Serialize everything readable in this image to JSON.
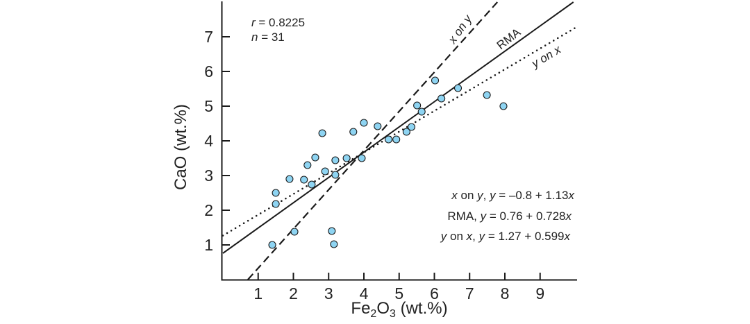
{
  "chart_data": {
    "type": "scatter",
    "title": "",
    "xlabel": "Fe2O3 (wt.%)",
    "xlabel_parts": {
      "base": "Fe",
      "sub1": "2",
      "mid": "O",
      "sub2": "3",
      "tail": " (wt.%)"
    },
    "ylabel": "CaO (wt.%)",
    "xlim": [
      0,
      10
    ],
    "ylim": [
      0,
      8
    ],
    "xticks": [
      1,
      2,
      3,
      4,
      5,
      6,
      7,
      8,
      9
    ],
    "xtick_labels": [
      "1",
      "2",
      "3",
      "4",
      "5",
      "6",
      "7",
      "8",
      "9"
    ],
    "yticks": [
      1,
      2,
      3,
      4,
      5,
      6,
      7
    ],
    "ytick_labels": [
      "1",
      "2",
      "3",
      "4",
      "5",
      "6",
      "7"
    ],
    "grid": false,
    "point_color": "#8ed4f2",
    "point_edge": "#1a1a1a",
    "points": [
      {
        "x": 1.4,
        "y": 1.0
      },
      {
        "x": 1.5,
        "y": 2.18
      },
      {
        "x": 1.5,
        "y": 2.5
      },
      {
        "x": 1.89,
        "y": 2.9
      },
      {
        "x": 2.03,
        "y": 1.38
      },
      {
        "x": 2.3,
        "y": 2.88
      },
      {
        "x": 2.4,
        "y": 3.3
      },
      {
        "x": 2.52,
        "y": 2.74
      },
      {
        "x": 2.62,
        "y": 3.52
      },
      {
        "x": 2.82,
        "y": 4.22
      },
      {
        "x": 2.9,
        "y": 3.12
      },
      {
        "x": 3.09,
        "y": 1.4
      },
      {
        "x": 3.15,
        "y": 1.02
      },
      {
        "x": 3.19,
        "y": 3.44
      },
      {
        "x": 3.19,
        "y": 3.02
      },
      {
        "x": 3.51,
        "y": 3.5
      },
      {
        "x": 3.7,
        "y": 4.26
      },
      {
        "x": 3.94,
        "y": 3.5
      },
      {
        "x": 4.0,
        "y": 4.52
      },
      {
        "x": 4.39,
        "y": 4.42
      },
      {
        "x": 4.7,
        "y": 4.04
      },
      {
        "x": 4.92,
        "y": 4.04
      },
      {
        "x": 5.21,
        "y": 4.26
      },
      {
        "x": 5.35,
        "y": 4.4
      },
      {
        "x": 5.51,
        "y": 5.02
      },
      {
        "x": 5.64,
        "y": 4.84
      },
      {
        "x": 6.02,
        "y": 5.74
      },
      {
        "x": 6.2,
        "y": 5.22
      },
      {
        "x": 6.67,
        "y": 5.52
      },
      {
        "x": 7.49,
        "y": 5.32
      },
      {
        "x": 7.96,
        "y": 5.0
      }
    ],
    "lines": [
      {
        "name": "x on y",
        "label": "x on y",
        "style": "dashed",
        "intercept": -0.8,
        "slope": 1.13
      },
      {
        "name": "RMA",
        "label": "RMA",
        "style": "solid",
        "intercept": 0.76,
        "slope": 0.728
      },
      {
        "name": "y on x",
        "label": "y on x",
        "style": "dotted",
        "intercept": 1.27,
        "slope": 0.599
      }
    ],
    "annotations": {
      "r_var": "r",
      "r_value": " = 0.8225",
      "n_var": "n",
      "n_value": " = 31",
      "eq1": {
        "a": "x",
        "b": " on ",
        "c": "y",
        "d": ", ",
        "e": "y",
        "f": " = –0.8 + 1.13",
        "g": "x"
      },
      "eq2": {
        "a": "RMA, ",
        "b": "y",
        "c": " = 0.76 + 0.728",
        "d": "x"
      },
      "eq3": {
        "a": "y",
        "b": " on ",
        "c": "x",
        "d": ", ",
        "e": "y",
        "f": " = 1.27 + 0.599",
        "g": "x"
      }
    }
  }
}
